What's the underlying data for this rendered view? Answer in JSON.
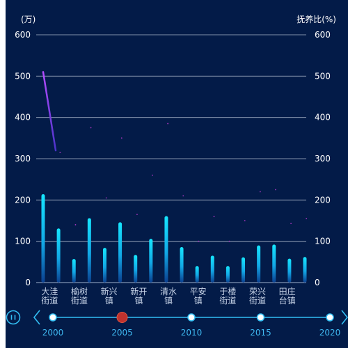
{
  "chart_data": {
    "type": "bar",
    "left_axis_label": "(万)",
    "right_axis_label": "抚养比(%)",
    "ylim": [
      0,
      600
    ],
    "y_ticks": [
      0,
      100,
      200,
      300,
      400,
      500,
      600
    ],
    "right_ylim": [
      0,
      600
    ],
    "right_ticks": [
      0,
      100,
      200,
      300,
      400,
      500,
      600
    ],
    "grid": true,
    "category_labels": [
      [
        "大洼",
        "街道"
      ],
      [
        "榆树",
        "街道"
      ],
      [
        "新兴",
        "镇"
      ],
      [
        "新开",
        "镇"
      ],
      [
        "清水",
        "镇"
      ],
      [
        "平安",
        "镇"
      ],
      [
        "于楼",
        "街道"
      ],
      [
        "荣兴",
        "街道"
      ],
      [
        "田庄",
        "台镇"
      ]
    ],
    "bars": [
      214,
      131,
      57,
      156,
      84,
      146,
      67,
      106,
      161,
      86,
      40,
      65,
      40,
      61,
      90,
      92,
      58,
      62
    ],
    "ratio_line": [
      510,
      320
    ],
    "ratio_points": [
      315,
      140,
      375,
      205,
      350,
      165,
      260,
      385,
      210,
      100,
      160,
      100,
      150,
      220,
      225,
      143,
      155
    ]
  },
  "timeline": {
    "years": [
      "2000",
      "2005",
      "2010",
      "2015",
      "2020"
    ],
    "current_index": 1,
    "play_icon": "pause-icon",
    "prev_icon": "chevron-left-icon",
    "next_icon": "chevron-right-icon"
  },
  "colors": {
    "background": "#031b48",
    "bar_top": "#16e6ff",
    "bar_bottom": "#0b4fa8",
    "line": "#b44cff",
    "points": "#c33bd6",
    "timeline": "#33c0f5",
    "current": "#c0322e"
  }
}
